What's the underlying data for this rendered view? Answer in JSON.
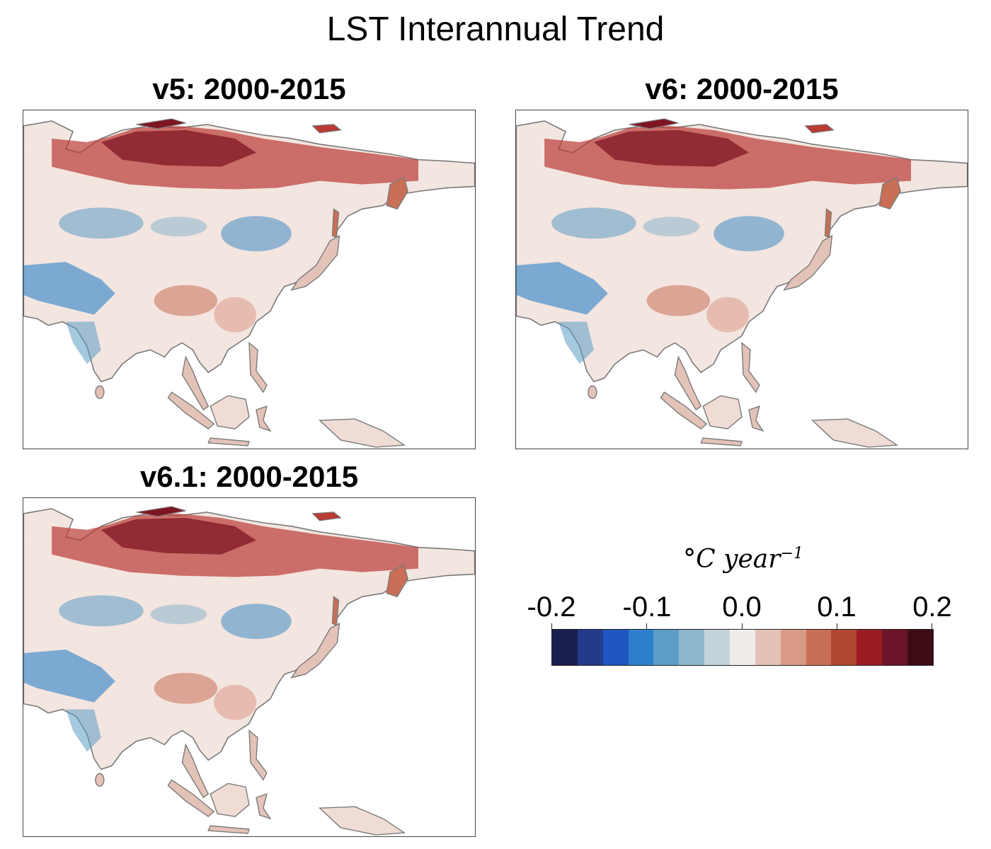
{
  "figure": {
    "title": "LST Interannual Trend"
  },
  "panels": [
    {
      "title": "v5: 2000-2015"
    },
    {
      "title": "v6: 2000-2015"
    },
    {
      "title": "v6.1: 2000-2015"
    }
  ],
  "colorbar": {
    "unit_label": "°C year",
    "unit_exponent": "−1",
    "ticks": [
      "-0.2",
      "-0.1",
      "0.0",
      "0.1",
      "0.2"
    ],
    "range": [
      -0.2,
      0.2
    ],
    "colors": [
      "#1b1f4f",
      "#263a8a",
      "#1f56c2",
      "#2b80c9",
      "#5b9dc4",
      "#8db7cc",
      "#c3d3da",
      "#efecea",
      "#e3c2b7",
      "#d89a86",
      "#c86f55",
      "#b24732",
      "#9b1c25",
      "#6d1528",
      "#3f0c16"
    ]
  },
  "map": {
    "land_color": "#f3e5df",
    "coast_color": "#7a7a7a",
    "warm_color": "#b93b34",
    "hot_color": "#7e1523",
    "cool_color": "#3f8cc5"
  }
}
